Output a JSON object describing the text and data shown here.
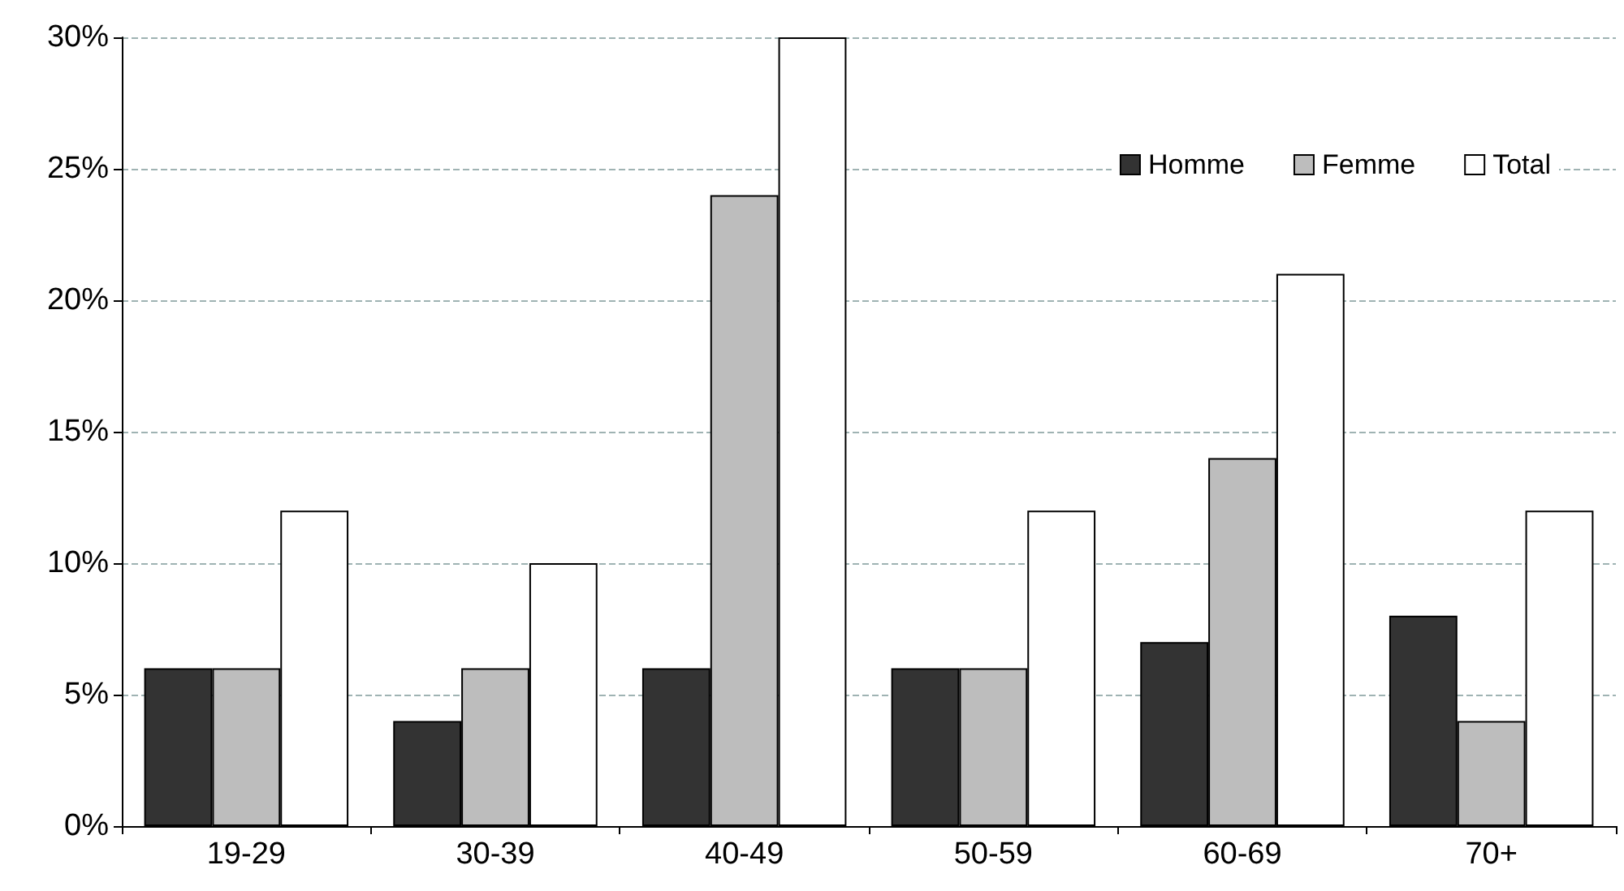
{
  "chart_data": {
    "type": "bar",
    "categories": [
      "19-29",
      "30-39",
      "40-49",
      "50-59",
      "60-69",
      "70+"
    ],
    "series": [
      {
        "name": "Homme",
        "color": "#333333",
        "values": [
          6,
          4,
          6,
          6,
          7,
          8
        ]
      },
      {
        "name": "Femme",
        "color": "#bdbdbd",
        "values": [
          6,
          6,
          24,
          6,
          14,
          4
        ]
      },
      {
        "name": "Total",
        "color": "#ffffff",
        "values": [
          12,
          10,
          30,
          12,
          21,
          12
        ]
      }
    ],
    "ylim": [
      0,
      30
    ],
    "yticks": [
      {
        "value": 0,
        "label": "0%"
      },
      {
        "value": 5,
        "label": "5%"
      },
      {
        "value": 10,
        "label": "10%"
      },
      {
        "value": 15,
        "label": "15%"
      },
      {
        "value": 20,
        "label": "20%"
      },
      {
        "value": 25,
        "label": "25%"
      },
      {
        "value": 30,
        "label": "30%"
      }
    ],
    "grid": "y",
    "legend": "top right"
  }
}
